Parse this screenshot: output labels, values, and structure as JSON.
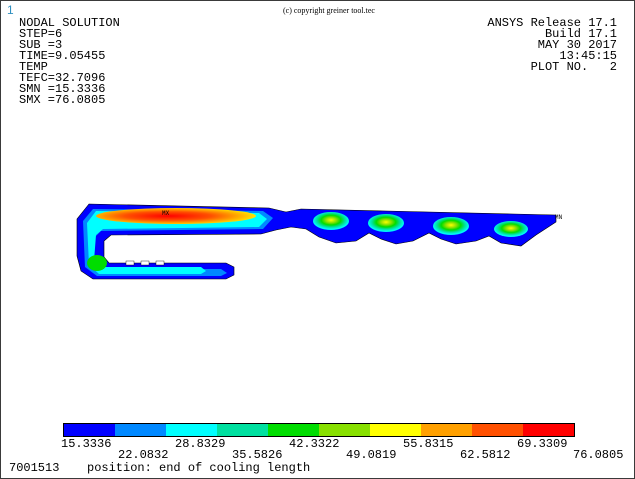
{
  "window_number": "1",
  "copyright": "(c) copyright greiner tool.tec",
  "info_left": {
    "lines": [
      "NODAL SOLUTION",
      "",
      "STEP=6",
      "SUB =3",
      "TIME=9.05455",
      "TEMP",
      "TEFC=32.7096",
      "SMN =15.3336",
      "SMX =76.0805"
    ]
  },
  "info_right": {
    "lines": [
      "ANSYS Release 17.1",
      "Build 17.1",
      "MAY 30 2017",
      "13:45:15",
      "PLOT NO.   2"
    ]
  },
  "markers": {
    "max": "MX",
    "min": "MN"
  },
  "legend": {
    "colors": [
      "#0000ff",
      "#0088ff",
      "#00ffff",
      "#00e0a0",
      "#00dd00",
      "#88e000",
      "#ffff00",
      "#ffa000",
      "#ff5000",
      "#ff0000"
    ],
    "labels_top": [
      "15.3336",
      "28.8329",
      "42.3322",
      "55.8315",
      "69.3309"
    ],
    "labels_bottom": [
      "22.0832",
      "35.5826",
      "49.0819",
      "62.5812",
      "76.0805"
    ]
  },
  "footer": {
    "id": "7001513",
    "title": "position: end of cooling length"
  }
}
